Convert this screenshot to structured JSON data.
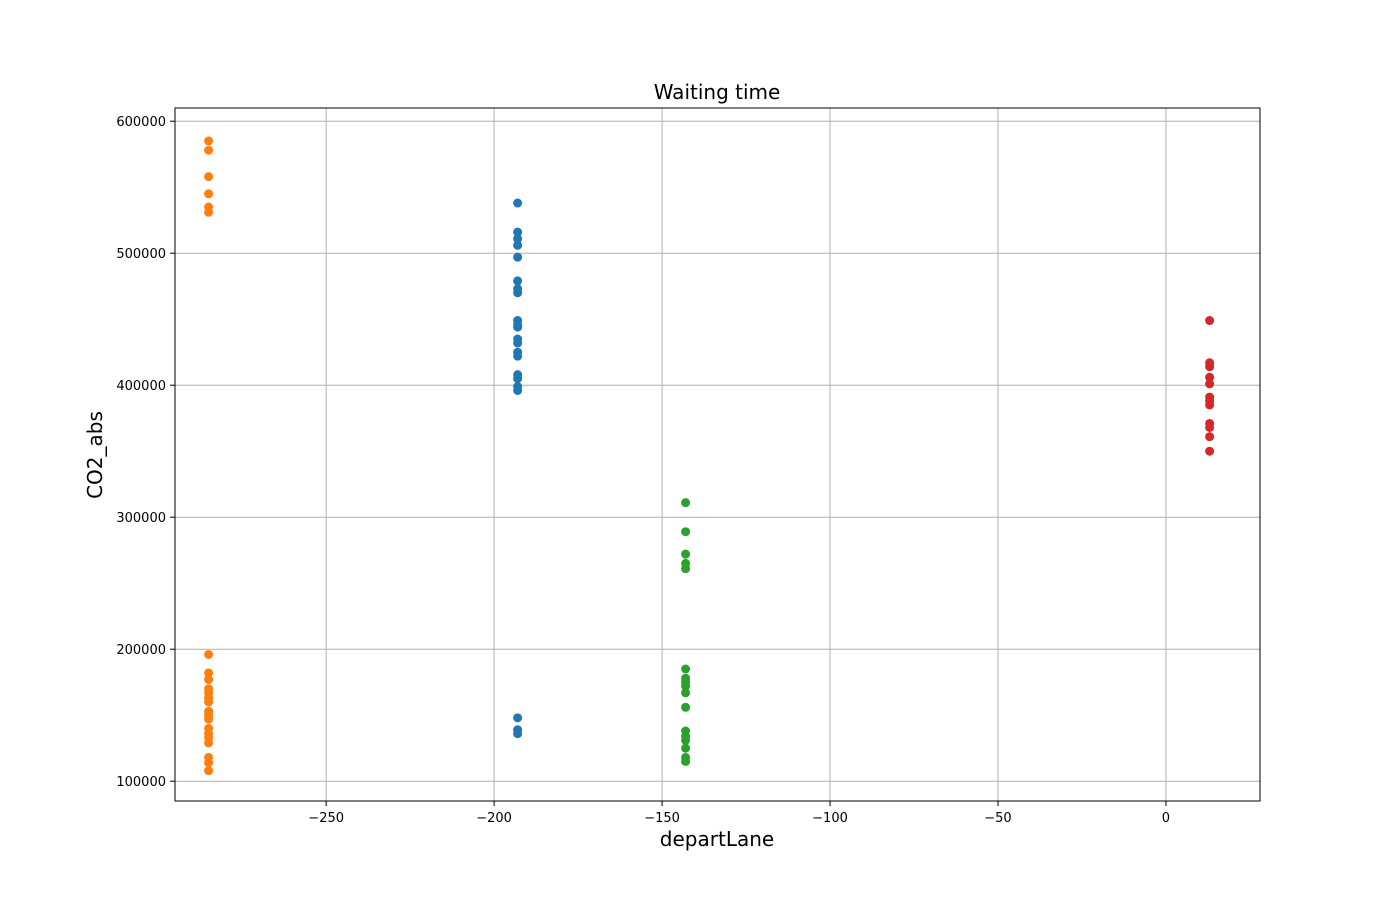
{
  "chart_data": {
    "type": "scatter",
    "title": "Waiting time",
    "xlabel": "departLane",
    "ylabel": "CO2_abs",
    "xlim": [
      -295,
      28
    ],
    "ylim": [
      85000,
      610000
    ],
    "x_ticks": [
      -250,
      -200,
      -150,
      -100,
      -50,
      0
    ],
    "x_tick_labels": [
      "−250",
      "−200",
      "−150",
      "−100",
      "−50",
      "0"
    ],
    "y_ticks": [
      100000,
      200000,
      300000,
      400000,
      500000,
      600000
    ],
    "y_tick_labels": [
      "100000",
      "200000",
      "300000",
      "400000",
      "500000",
      "600000"
    ],
    "grid": true,
    "legend": "none",
    "series": [
      {
        "color": "#ff7f0e",
        "x": -285,
        "values": [
          585000,
          578000,
          558000,
          545000,
          535000,
          531000,
          196000,
          182000,
          177000,
          170000,
          167000,
          163000,
          160000,
          153000,
          150000,
          147000,
          140000,
          136000,
          133000,
          129000,
          118000,
          114000,
          108000
        ]
      },
      {
        "color": "#1f77b4",
        "x": -193,
        "values": [
          538000,
          516000,
          511000,
          506000,
          497000,
          479000,
          473000,
          470000,
          449000,
          446000,
          444000,
          435000,
          432000,
          425000,
          422000,
          408000,
          405000,
          399000,
          396000,
          148000,
          139000,
          136000
        ]
      },
      {
        "color": "#2ca02c",
        "x": -143,
        "values": [
          311000,
          289000,
          272000,
          265000,
          261000,
          185000,
          178000,
          175000,
          172000,
          167000,
          156000,
          138000,
          134000,
          131000,
          125000,
          118000,
          115000
        ]
      },
      {
        "color": "#d62728",
        "x": 13,
        "values": [
          449000,
          417000,
          414000,
          406000,
          401000,
          391000,
          388000,
          385000,
          371000,
          368000,
          361000,
          350000
        ]
      }
    ]
  }
}
